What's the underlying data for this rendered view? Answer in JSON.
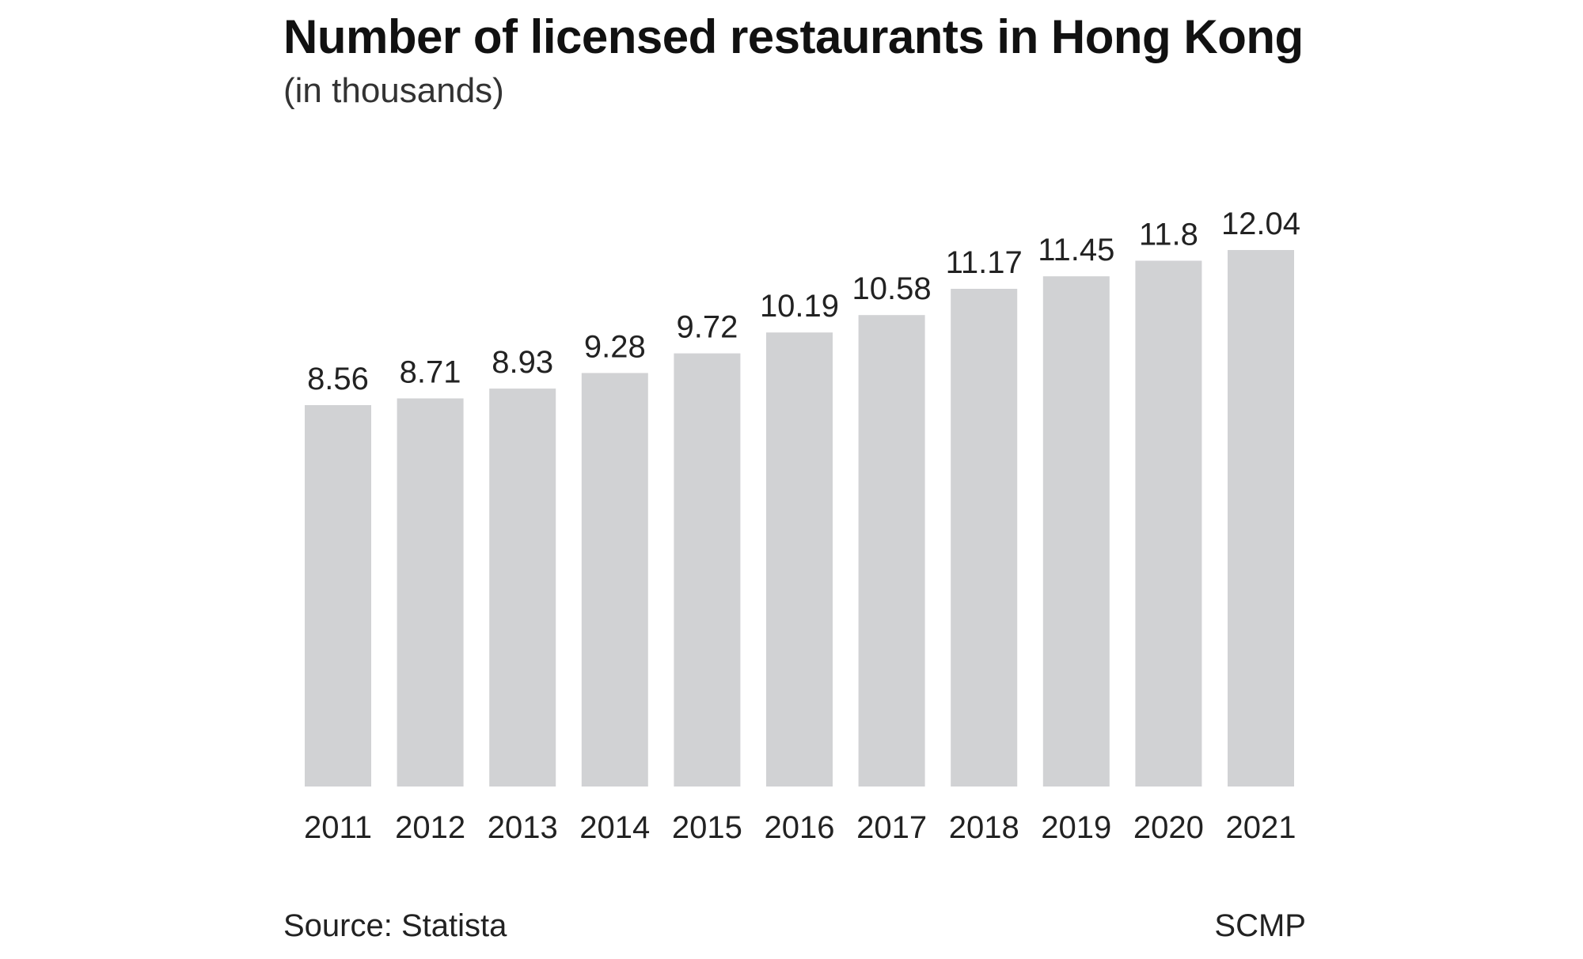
{
  "chart_data": {
    "type": "bar",
    "title": "Number of licensed restaurants in Hong Kong",
    "subtitle": "(in thousands)",
    "categories": [
      "2011",
      "2012",
      "2013",
      "2014",
      "2015",
      "2016",
      "2017",
      "2018",
      "2019",
      "2020",
      "2021"
    ],
    "values": [
      8.56,
      8.71,
      8.93,
      9.28,
      9.72,
      10.19,
      10.58,
      11.17,
      11.45,
      11.8,
      12.04
    ],
    "value_labels": [
      "8.56",
      "8.71",
      "8.93",
      "9.28",
      "9.72",
      "10.19",
      "10.58",
      "11.17",
      "11.45",
      "11.8",
      "12.04"
    ],
    "xlabel": "",
    "ylabel": "",
    "ylim": [
      0,
      12.04
    ],
    "grid": false,
    "bar_color": "#d1d2d4",
    "text_color": "#222222"
  },
  "footer": {
    "source": "Source: Statista",
    "credit": "SCMP"
  }
}
